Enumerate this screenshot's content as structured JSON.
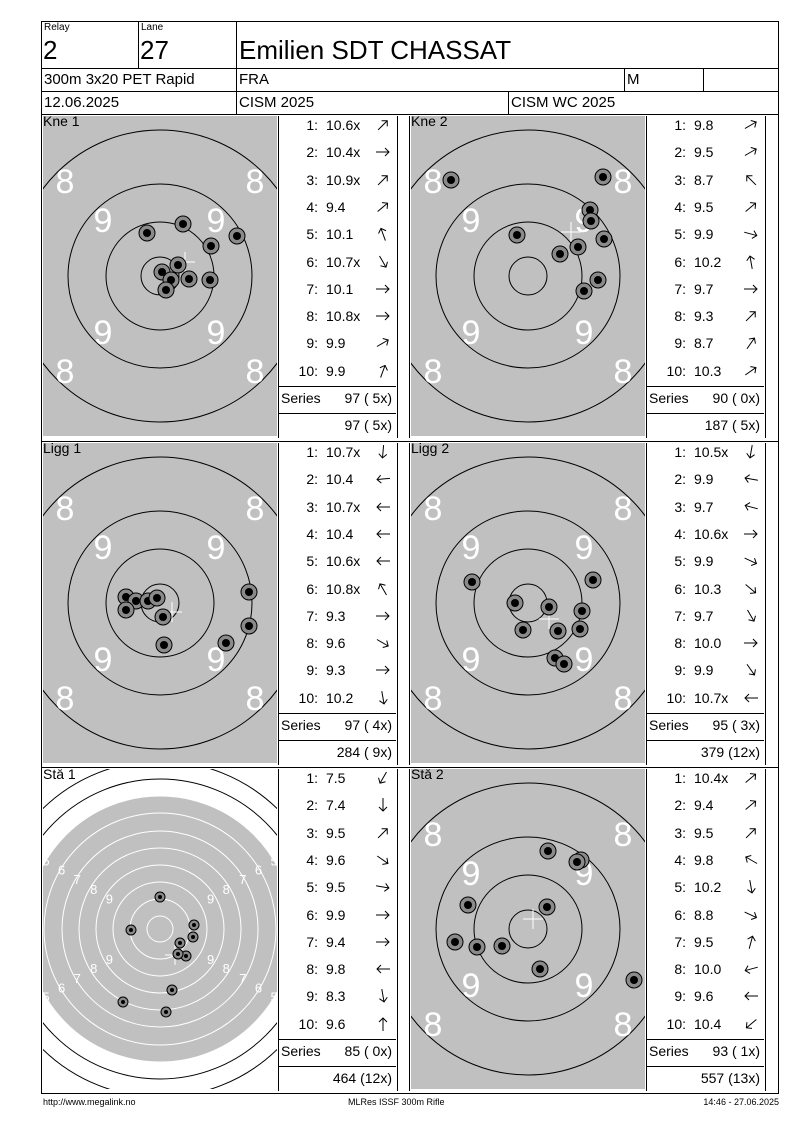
{
  "header": {
    "relay_label": "Relay",
    "relay_value": "2",
    "lane_label": "Lane",
    "lane_value": "27",
    "athlete_name": "Emilien SDT CHASSAT",
    "event": "300m 3x20 PET Rapid",
    "nation": "FRA",
    "gender": "M",
    "date": "12.06.2025",
    "competition": "CISM 2025",
    "competition_sub": "CISM WC 2025"
  },
  "series_label": "Series",
  "stages": [
    {
      "label": "Kne 1",
      "target": "grey",
      "rings": [
        [
          8,
          8
        ],
        [
          9,
          9
        ],
        [
          9,
          9
        ],
        [
          8,
          8
        ]
      ],
      "shots": [
        {
          "n": "1:",
          "v": "10.6x",
          "dir": 45
        },
        {
          "n": "2:",
          "v": "10.4x",
          "dir": 0
        },
        {
          "n": "3:",
          "v": "10.9x",
          "dir": 45
        },
        {
          "n": "4:",
          "v": "9.4",
          "dir": 40
        },
        {
          "n": "5:",
          "v": "10.1",
          "dir": 110
        },
        {
          "n": "6:",
          "v": "10.7x",
          "dir": -60
        },
        {
          "n": "7:",
          "v": "10.1",
          "dir": 0
        },
        {
          "n": "8:",
          "v": "10.8x",
          "dir": 0
        },
        {
          "n": "9:",
          "v": "9.9",
          "dir": 30
        },
        {
          "n": "10:",
          "v": "9.9",
          "dir": 70
        }
      ],
      "series": "97 ( 5x)",
      "total": "97 ( 5x)"
    },
    {
      "label": "Kne 2",
      "target": "grey",
      "shots": [
        {
          "n": "1:",
          "v": "9.8",
          "dir": 30
        },
        {
          "n": "2:",
          "v": "9.5",
          "dir": 30
        },
        {
          "n": "3:",
          "v": "8.7",
          "dir": 135
        },
        {
          "n": "4:",
          "v": "9.5",
          "dir": 40
        },
        {
          "n": "5:",
          "v": "9.9",
          "dir": -15
        },
        {
          "n": "6:",
          "v": "10.2",
          "dir": 100
        },
        {
          "n": "7:",
          "v": "9.7",
          "dir": 0
        },
        {
          "n": "8:",
          "v": "9.3",
          "dir": 45
        },
        {
          "n": "9:",
          "v": "8.7",
          "dir": 55
        },
        {
          "n": "10:",
          "v": "10.3",
          "dir": 35
        }
      ],
      "series": "90 ( 0x)",
      "total": "187 ( 5x)"
    },
    {
      "label": "Ligg 1",
      "target": "grey",
      "shots": [
        {
          "n": "1:",
          "v": "10.7x",
          "dir": -95
        },
        {
          "n": "2:",
          "v": "10.4",
          "dir": 185
        },
        {
          "n": "3:",
          "v": "10.7x",
          "dir": 180
        },
        {
          "n": "4:",
          "v": "10.4",
          "dir": 180
        },
        {
          "n": "5:",
          "v": "10.6x",
          "dir": 180
        },
        {
          "n": "6:",
          "v": "10.8x",
          "dir": 120
        },
        {
          "n": "7:",
          "v": "9.3",
          "dir": 0
        },
        {
          "n": "8:",
          "v": "9.6",
          "dir": -30
        },
        {
          "n": "9:",
          "v": "9.3",
          "dir": 0
        },
        {
          "n": "10:",
          "v": "10.2",
          "dir": -80
        }
      ],
      "series": "97 ( 4x)",
      "total": "284 ( 9x)"
    },
    {
      "label": "Ligg 2",
      "target": "grey",
      "shots": [
        {
          "n": "1:",
          "v": "10.5x",
          "dir": -100
        },
        {
          "n": "2:",
          "v": "9.9",
          "dir": 170
        },
        {
          "n": "3:",
          "v": "9.7",
          "dir": 165
        },
        {
          "n": "4:",
          "v": "10.6x",
          "dir": 0
        },
        {
          "n": "5:",
          "v": "9.9",
          "dir": -25
        },
        {
          "n": "6:",
          "v": "10.3",
          "dir": -40
        },
        {
          "n": "7:",
          "v": "9.7",
          "dir": -60
        },
        {
          "n": "8:",
          "v": "10.0",
          "dir": 0
        },
        {
          "n": "9:",
          "v": "9.9",
          "dir": -55
        },
        {
          "n": "10:",
          "v": "10.7x",
          "dir": 180
        }
      ],
      "series": "95 ( 3x)",
      "total": "379 (12x)"
    },
    {
      "label": "Stå 1",
      "target": "standing",
      "shots": [
        {
          "n": "1:",
          "v": "7.5",
          "dir": -120
        },
        {
          "n": "2:",
          "v": "7.4",
          "dir": -90
        },
        {
          "n": "3:",
          "v": "9.5",
          "dir": 45
        },
        {
          "n": "4:",
          "v": "9.6",
          "dir": -35
        },
        {
          "n": "5:",
          "v": "9.5",
          "dir": -10
        },
        {
          "n": "6:",
          "v": "9.9",
          "dir": 0
        },
        {
          "n": "7:",
          "v": "9.4",
          "dir": 0
        },
        {
          "n": "8:",
          "v": "9.8",
          "dir": 180
        },
        {
          "n": "9:",
          "v": "8.3",
          "dir": -80
        },
        {
          "n": "10:",
          "v": "9.6",
          "dir": 90
        }
      ],
      "series": "85 ( 0x)",
      "total": "464 (12x)"
    },
    {
      "label": "Stå 2",
      "target": "grey",
      "shots": [
        {
          "n": "1:",
          "v": "10.4x",
          "dir": 40
        },
        {
          "n": "2:",
          "v": "9.4",
          "dir": 40
        },
        {
          "n": "3:",
          "v": "9.5",
          "dir": 45
        },
        {
          "n": "4:",
          "v": "9.8",
          "dir": 150
        },
        {
          "n": "5:",
          "v": "10.2",
          "dir": -80
        },
        {
          "n": "6:",
          "v": "8.8",
          "dir": -25
        },
        {
          "n": "7:",
          "v": "9.5",
          "dir": 75
        },
        {
          "n": "8:",
          "v": "10.0",
          "dir": 195
        },
        {
          "n": "9:",
          "v": "9.6",
          "dir": 180
        },
        {
          "n": "10:",
          "v": "10.4",
          "dir": -140
        }
      ],
      "series": "93 ( 1x)",
      "total": "557 (13x)"
    }
  ],
  "footer": {
    "left": "http://www.megalink.no",
    "center": "MLRes ISSF 300m Rifle",
    "right": "14:46 - 27.06.2025"
  }
}
